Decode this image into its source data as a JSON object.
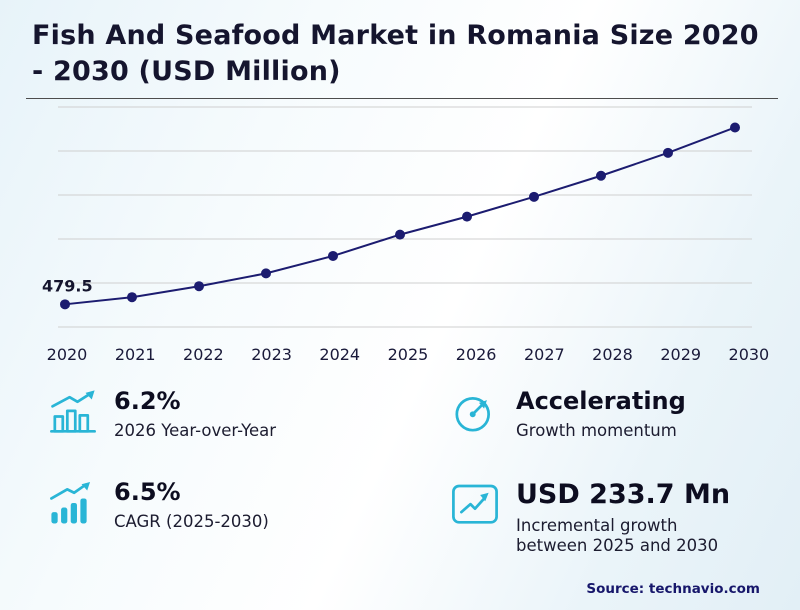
{
  "header": {
    "title": "Fish And Seafood Market in Romania Size 2020 - 2030 (USD Million)"
  },
  "chart_data": {
    "type": "line",
    "title": "Fish And Seafood Market in Romania Size 2020 - 2030 (USD Million)",
    "x": [
      "2020",
      "2021",
      "2022",
      "2023",
      "2024",
      "2025",
      "2026",
      "2027",
      "2028",
      "2029",
      "2030"
    ],
    "values": [
      479.5,
      495.0,
      519.0,
      547.0,
      585.0,
      631.6,
      670.8,
      714.0,
      760.0,
      810.0,
      865.3
    ],
    "first_point_label": "479.5",
    "ylim": [
      430,
      910
    ],
    "grid": true,
    "gridline_count": 6,
    "legend": "none",
    "line_color": "#1c1c70",
    "point_color": "#1c1c70"
  },
  "stats": {
    "yoy": {
      "value": "6.2%",
      "label": "2026 Year-over-Year"
    },
    "momentum": {
      "value": "Accelerating",
      "label": "Growth momentum"
    },
    "cagr": {
      "value": "6.5%",
      "label": "CAGR (2025-2030)"
    },
    "incremental": {
      "value": "USD 233.7 Mn",
      "label": "Incremental growth between 2025 and 2030"
    }
  },
  "footer": {
    "source": "Source: technavio.com"
  },
  "colors": {
    "accent": "#29b5d6",
    "line": "#1c1c70",
    "title_text": "#15152e",
    "gridline": "#cfcfcf"
  }
}
